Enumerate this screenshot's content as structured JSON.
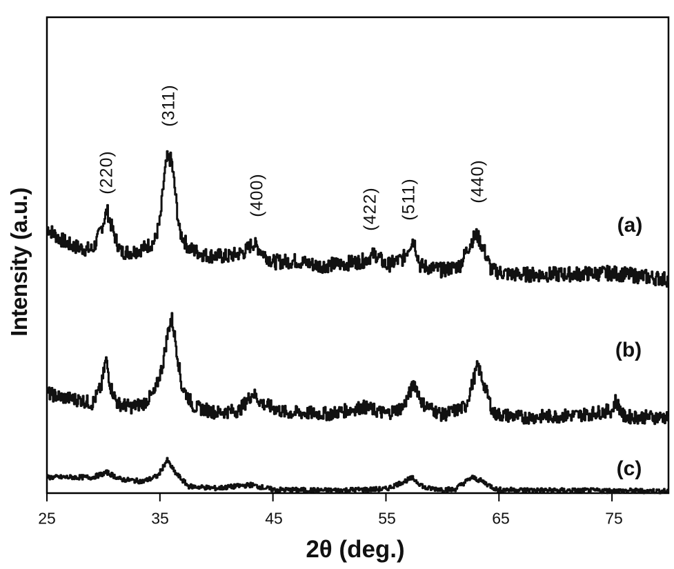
{
  "chart_data": {
    "type": "line",
    "title": "",
    "xlabel": "2θ (deg.)",
    "ylabel": "Intensity (a.u.)",
    "xlim": [
      25,
      80
    ],
    "ylim": [
      0,
      690
    ],
    "x_ticks": [
      25,
      35,
      45,
      55,
      65,
      75
    ],
    "y_ticks": [],
    "grid": false,
    "legend": "none (series labelled inline at right: (a), (b), (c))",
    "peak_annotations": [
      {
        "label": "(220)",
        "x": 30.3
      },
      {
        "label": "(311)",
        "x": 35.7
      },
      {
        "label": "(400)",
        "x": 43.3
      },
      {
        "label": "(422)",
        "x": 53.3
      },
      {
        "label": "(511)",
        "x": 56.7
      },
      {
        "label": "(440)",
        "x": 62.8
      }
    ],
    "series": [
      {
        "name": "(a)",
        "points": [
          [
            25,
            385
          ],
          [
            26,
            370
          ],
          [
            27,
            360
          ],
          [
            28,
            355
          ],
          [
            29,
            353
          ],
          [
            29.5,
            370
          ],
          [
            30,
            395
          ],
          [
            30.3,
            410
          ],
          [
            30.8,
            380
          ],
          [
            31.5,
            350
          ],
          [
            32.5,
            350
          ],
          [
            33.5,
            355
          ],
          [
            34.5,
            365
          ],
          [
            35,
            395
          ],
          [
            35.3,
            450
          ],
          [
            35.6,
            485
          ],
          [
            36,
            483
          ],
          [
            36.3,
            440
          ],
          [
            36.7,
            380
          ],
          [
            37.5,
            355
          ],
          [
            39,
            345
          ],
          [
            41,
            343
          ],
          [
            42.5,
            350
          ],
          [
            43.2,
            363
          ],
          [
            44,
            350
          ],
          [
            45,
            335
          ],
          [
            47,
            337
          ],
          [
            49,
            330
          ],
          [
            51,
            332
          ],
          [
            53,
            337
          ],
          [
            54,
            347
          ],
          [
            55,
            330
          ],
          [
            56.5,
            340
          ],
          [
            57.4,
            370
          ],
          [
            58,
            330
          ],
          [
            60,
            323
          ],
          [
            61.5,
            330
          ],
          [
            62.5,
            365
          ],
          [
            63,
            375
          ],
          [
            63.6,
            355
          ],
          [
            64.3,
            323
          ],
          [
            66,
            317
          ],
          [
            70,
            317
          ],
          [
            75,
            319
          ],
          [
            80,
            310
          ]
        ]
      },
      {
        "name": "(b)",
        "points": [
          [
            25,
            145
          ],
          [
            26,
            140
          ],
          [
            27,
            137
          ],
          [
            28,
            135
          ],
          [
            29,
            130
          ],
          [
            29.8,
            155
          ],
          [
            30.2,
            195
          ],
          [
            30.6,
            155
          ],
          [
            31.2,
            130
          ],
          [
            32.5,
            125
          ],
          [
            33.5,
            130
          ],
          [
            34.5,
            145
          ],
          [
            35.2,
            185
          ],
          [
            35.7,
            235
          ],
          [
            36,
            257
          ],
          [
            36.4,
            215
          ],
          [
            36.9,
            155
          ],
          [
            38,
            125
          ],
          [
            40,
            117
          ],
          [
            42,
            120
          ],
          [
            43.2,
            145
          ],
          [
            44,
            130
          ],
          [
            46,
            117
          ],
          [
            50,
            115
          ],
          [
            53,
            125
          ],
          [
            55,
            115
          ],
          [
            56.5,
            125
          ],
          [
            57.5,
            160
          ],
          [
            58.2,
            130
          ],
          [
            60,
            113
          ],
          [
            62,
            125
          ],
          [
            63.1,
            185
          ],
          [
            63.8,
            150
          ],
          [
            64.5,
            115
          ],
          [
            67,
            110
          ],
          [
            72,
            113
          ],
          [
            75,
            120
          ],
          [
            75.3,
            135
          ],
          [
            76,
            111
          ],
          [
            80,
            110
          ]
        ]
      },
      {
        "name": "(c)",
        "points": [
          [
            25,
            23
          ],
          [
            27,
            23
          ],
          [
            29,
            23
          ],
          [
            30.3,
            30
          ],
          [
            31.5,
            20
          ],
          [
            33.5,
            17
          ],
          [
            34.8,
            25
          ],
          [
            35.6,
            48
          ],
          [
            36.3,
            30
          ],
          [
            37.5,
            10
          ],
          [
            40,
            7
          ],
          [
            43,
            12
          ],
          [
            45,
            5
          ],
          [
            50,
            4
          ],
          [
            55,
            6
          ],
          [
            57.3,
            22
          ],
          [
            58.5,
            7
          ],
          [
            61,
            5
          ],
          [
            62.6,
            23
          ],
          [
            63.5,
            17
          ],
          [
            64.8,
            5
          ],
          [
            70,
            4
          ],
          [
            80,
            3
          ]
        ]
      }
    ]
  },
  "axes": {
    "xlabel": "2θ (deg.)",
    "ylabel": "Intensity (a.u.)",
    "x_tick_labels": [
      "25",
      "35",
      "45",
      "55",
      "65",
      "75"
    ]
  },
  "peaks": {
    "p220": "(220)",
    "p311": "(311)",
    "p400": "(400)",
    "p422": "(422)",
    "p511": "(511)",
    "p440": "(440)"
  },
  "series_labels": {
    "a": "(a)",
    "b": "(b)",
    "c": "(c)"
  },
  "colors": {
    "line": "#111111",
    "frame": "#000000",
    "background": "#ffffff"
  }
}
